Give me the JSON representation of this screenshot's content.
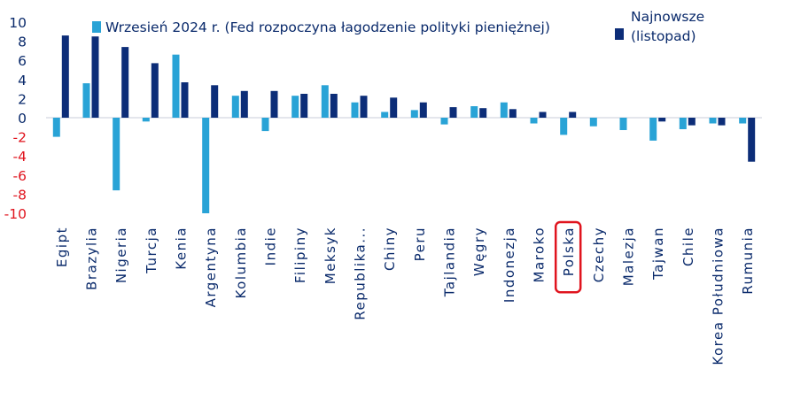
{
  "colors": {
    "series1": "#29a3d6",
    "series2": "#0c2d78",
    "text": "#0a2a6b",
    "negative_text": "#e0141e",
    "highlight": "#e0141e"
  },
  "legend": {
    "series1_label": "Wrzesień 2024 r. (Fed rozpoczyna łagodzenie polityki pieniężnej)",
    "series2_label": "Najnowsze (listopad)"
  },
  "chart_data": {
    "type": "bar",
    "title": "",
    "xlabel": "",
    "ylabel": "",
    "ylim": [
      -10,
      10
    ],
    "yticks": [
      10,
      8,
      6,
      4,
      2,
      0,
      -2,
      -4,
      -6,
      -8,
      -10
    ],
    "categories": [
      "Egipt",
      "Brazylia",
      "Nigeria",
      "Turcja",
      "Kenia",
      "Argentyna",
      "Kolumbia",
      "Indie",
      "Filipiny",
      "Meksyk",
      "Republika...",
      "Chiny",
      "Peru",
      "Tajlandia",
      "Węgry",
      "Indonezja",
      "Maroko",
      "Polska",
      "Czechy",
      "Malezja",
      "Tajwan",
      "Chile",
      "Korea Południowa",
      "Rumunia"
    ],
    "highlighted_category": "Polska",
    "legend_position": "top",
    "grid": false,
    "series": [
      {
        "name": "Wrzesień 2024 r. (Fed rozpoczyna łagodzenie polityki pieniężnej)",
        "values": [
          -2.0,
          3.6,
          -7.6,
          -0.4,
          6.6,
          -10.0,
          2.3,
          -1.4,
          2.3,
          3.4,
          1.6,
          0.6,
          0.8,
          -0.7,
          1.2,
          1.6,
          -0.6,
          -1.8,
          -0.9,
          -1.3,
          -2.4,
          -1.2,
          -0.6,
          -0.6
        ]
      },
      {
        "name": "Najnowsze (listopad)",
        "values": [
          8.6,
          8.5,
          7.4,
          5.7,
          3.7,
          3.4,
          2.8,
          2.8,
          2.5,
          2.5,
          2.3,
          2.1,
          1.6,
          1.1,
          1.0,
          0.9,
          0.6,
          0.6,
          0.0,
          0.0,
          -0.4,
          -0.8,
          -0.8,
          -4.6
        ]
      }
    ]
  }
}
